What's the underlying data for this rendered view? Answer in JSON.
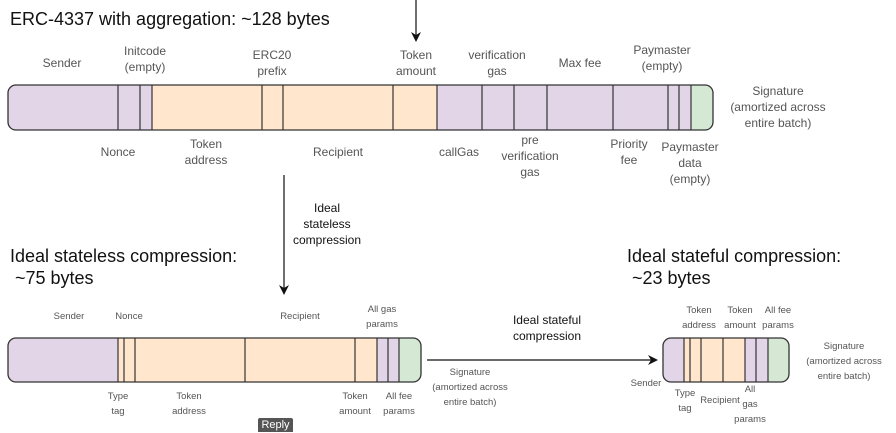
{
  "colors": {
    "account": "#e1d5e7",
    "payload": "#ffe6cc",
    "signature": "#d5e8d4",
    "border": "#333333"
  },
  "top": {
    "title": "ERC-4337 with aggregation: ~128 bytes",
    "above": [
      "Sender",
      "Initcode\n(empty)",
      "ERC20\nprefix",
      "Token\namount",
      "verification\ngas",
      "Max fee",
      "Paymaster\n(empty)"
    ],
    "below": [
      "Nonce",
      "Token\naddress",
      "Recipient",
      "callGas",
      "pre\nverification\ngas",
      "Priority\nfee",
      "Paymaster\ndata\n(empty)"
    ],
    "signature": "Signature\n(amortized across\nentire batch)"
  },
  "arrow1_label": "Ideal\nstateless\ncompression",
  "stateless": {
    "title": "Ideal stateless compression:\n ~75 bytes",
    "above": [
      "Sender",
      "Nonce",
      "Recipient",
      "All gas\nparams"
    ],
    "below": [
      "Type\ntag",
      "Token\naddress",
      "Token\namount",
      "All fee\nparams"
    ],
    "signature": "Signature\n(amortized across\nentire batch)"
  },
  "arrow2_label": "Ideal stateful\ncompression",
  "stateful": {
    "title": "Ideal stateful compression:\n ~23 bytes",
    "above": [
      "Token\naddress",
      "Token\namount",
      "All fee\nparams"
    ],
    "below": [
      "Sender",
      "Type\ntag",
      "Recipient",
      "All\ngas\nparams"
    ],
    "signature": "Signature\n(amortized across\nentire batch)"
  },
  "reply_label": "Reply"
}
